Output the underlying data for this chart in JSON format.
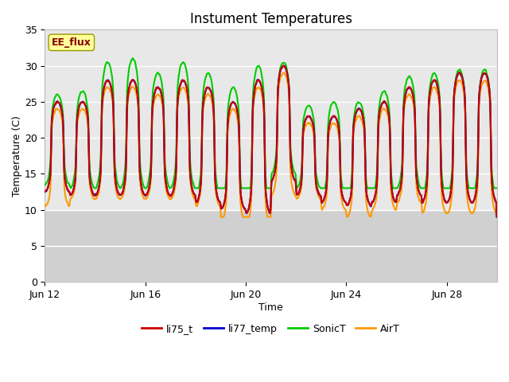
{
  "title": "Instument Temperatures",
  "xlabel": "Time",
  "ylabel": "Temperature (C)",
  "ylim": [
    0,
    35
  ],
  "yticks": [
    0,
    5,
    10,
    15,
    20,
    25,
    30,
    35
  ],
  "background_color": "#ffffff",
  "plot_bg_upper": "#e8e8e8",
  "plot_bg_lower": "#d0d0d0",
  "grid_color": "#ffffff",
  "xtick_labels": [
    "Jun 12",
    "Jun 16",
    "Jun 20",
    "Jun 24",
    "Jun 28"
  ],
  "series": {
    "li75_t": {
      "color": "#cc0000",
      "lw": 1.5
    },
    "li77_temp": {
      "color": "#0000cc",
      "lw": 1.5
    },
    "SonicT": {
      "color": "#00cc00",
      "lw": 1.5
    },
    "AirT": {
      "color": "#ff9900",
      "lw": 1.5
    }
  },
  "annotation_text": "EE_flux",
  "annotation_color": "#880000",
  "annotation_bg": "#ffff99",
  "annotation_border": "#999900",
  "title_fontsize": 12,
  "axis_label_fontsize": 9,
  "tick_fontsize": 9,
  "legend_fontsize": 9,
  "n_days": 18,
  "pts_per_day": 144,
  "day_peak_temps": [
    25,
    25,
    28,
    28,
    27,
    28,
    27,
    25,
    28,
    30,
    23,
    23,
    24,
    25,
    27,
    28,
    29,
    29
  ],
  "day_trough_temps": [
    12.5,
    12,
    12,
    12,
    12,
    12,
    11,
    10,
    9.5,
    14,
    12,
    11,
    10.5,
    11,
    12,
    11,
    11,
    11
  ],
  "sonic_extra": [
    1.0,
    1.5,
    2.5,
    3.0,
    2.0,
    2.5,
    2.0,
    2.0,
    2.0,
    0.5,
    1.5,
    2.0,
    1.0,
    1.5,
    1.5,
    1.0,
    0.5,
    0.5
  ],
  "air_trough_offset": [
    -2,
    -0.5,
    -0.5,
    -0.5,
    -0.5,
    -0.5,
    -0.5,
    -1.5,
    -1.5,
    -2,
    -0.5,
    -1,
    -1.5,
    -1,
    -1,
    -1.5,
    -1.5,
    -1.5
  ],
  "peak_sharpness": 3.5
}
